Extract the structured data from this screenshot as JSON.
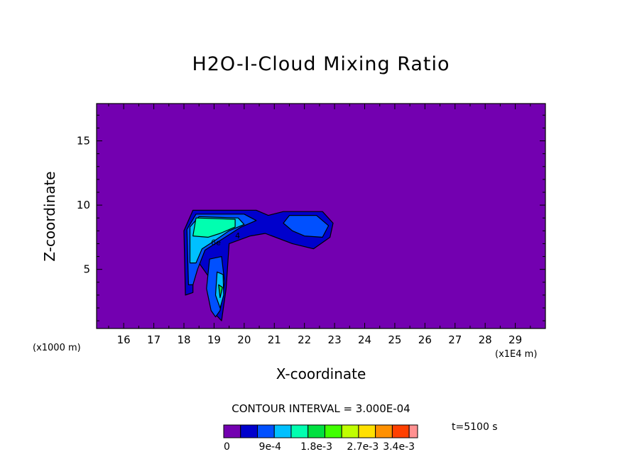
{
  "chart_data": {
    "type": "contour",
    "title": "H2O-I-Cloud Mixing Ratio",
    "xlabel": "X-coordinate",
    "ylabel": "Z-coordinate",
    "x_unit_left": "(x1000 m)",
    "x_unit_right": "(x1E4 m)",
    "xlim": [
      15.1,
      30.0
    ],
    "ylim": [
      0.4,
      17.9
    ],
    "x_ticks": [
      "16",
      "17",
      "18",
      "19",
      "20",
      "21",
      "22",
      "23",
      "24",
      "25",
      "26",
      "27",
      "28",
      "29"
    ],
    "x_tick_values": [
      16,
      17,
      18,
      19,
      20,
      21,
      22,
      23,
      24,
      25,
      26,
      27,
      28,
      29
    ],
    "y_ticks": [
      "5",
      "10",
      "15"
    ],
    "y_tick_values": [
      5,
      10,
      15
    ],
    "contour_interval": "CONTOUR INTERVAL = 3.000E-04",
    "contour_labels": [
      "6e",
      "4"
    ],
    "time": "t=5100 s",
    "colorbar": {
      "colors": [
        "#7300b0",
        "#0000cc",
        "#0050ff",
        "#00c0ff",
        "#00ffb0",
        "#00e040",
        "#40ff00",
        "#c0ff00",
        "#ffe000",
        "#ff9000",
        "#ff4000",
        "#ff9090"
      ],
      "tick_labels": [
        {
          "label": "0",
          "value": 0
        },
        {
          "label": "9e-4",
          "value": 0.0009
        },
        {
          "label": "1.8e-3",
          "value": 0.0018
        },
        {
          "label": "2.7e-3",
          "value": 0.0027
        },
        {
          "label": "3.4e-3",
          "value": 0.0034
        }
      ],
      "max": 0.0036
    },
    "regions": [
      {
        "name": "L-shaped cloud outer (>=3e-4)",
        "color": "#0000cc",
        "points": [
          [
            18.05,
            3.0
          ],
          [
            18.0,
            8.0
          ],
          [
            18.3,
            9.6
          ],
          [
            20.4,
            9.6
          ],
          [
            20.8,
            9.2
          ],
          [
            21.3,
            9.5
          ],
          [
            22.6,
            9.5
          ],
          [
            22.95,
            8.6
          ],
          [
            22.85,
            7.5
          ],
          [
            22.3,
            6.6
          ],
          [
            21.6,
            7.0
          ],
          [
            20.7,
            7.8
          ],
          [
            20.2,
            7.6
          ],
          [
            19.5,
            7.0
          ],
          [
            19.4,
            3.5
          ],
          [
            19.25,
            1.0
          ],
          [
            19.05,
            1.5
          ],
          [
            18.95,
            2.5
          ],
          [
            18.8,
            4.5
          ],
          [
            18.5,
            5.5
          ],
          [
            18.3,
            4.5
          ],
          [
            18.3,
            3.2
          ]
        ]
      },
      {
        "name": "left arm (>=6e-4)",
        "color": "#0050ff",
        "points": [
          [
            18.15,
            3.8
          ],
          [
            18.1,
            8.1
          ],
          [
            18.4,
            9.3
          ],
          [
            20.0,
            9.3
          ],
          [
            20.4,
            8.8
          ],
          [
            19.9,
            8.3
          ],
          [
            19.3,
            7.4
          ],
          [
            18.7,
            6.5
          ],
          [
            18.45,
            5.0
          ],
          [
            18.3,
            3.8
          ]
        ]
      },
      {
        "name": "right lobe (>=6e-4)",
        "color": "#0050ff",
        "points": [
          [
            21.3,
            8.6
          ],
          [
            21.5,
            9.2
          ],
          [
            22.4,
            9.2
          ],
          [
            22.8,
            8.4
          ],
          [
            22.6,
            7.5
          ],
          [
            22.0,
            7.6
          ],
          [
            21.6,
            8.0
          ]
        ]
      },
      {
        "name": "left arm core (>=9e-4)",
        "color": "#00c0ff",
        "points": [
          [
            18.2,
            5.5
          ],
          [
            18.2,
            8.3
          ],
          [
            18.5,
            9.1
          ],
          [
            19.8,
            9.0
          ],
          [
            20.0,
            8.5
          ],
          [
            19.5,
            8.0
          ],
          [
            19.0,
            7.2
          ],
          [
            18.6,
            6.6
          ],
          [
            18.4,
            5.5
          ]
        ]
      },
      {
        "name": "left arm peak (>=1.2e-3)",
        "color": "#00ffb0",
        "points": [
          [
            18.3,
            7.6
          ],
          [
            18.4,
            9.0
          ],
          [
            19.7,
            8.9
          ],
          [
            19.7,
            8.3
          ],
          [
            19.2,
            7.8
          ],
          [
            18.8,
            7.5
          ]
        ]
      },
      {
        "name": "descending column outer (>=6e-4)",
        "color": "#0050ff",
        "points": [
          [
            18.85,
            5.8
          ],
          [
            18.75,
            3.5
          ],
          [
            18.9,
            1.8
          ],
          [
            19.05,
            1.3
          ],
          [
            19.2,
            1.8
          ],
          [
            19.35,
            4.0
          ],
          [
            19.25,
            6.0
          ]
        ]
      },
      {
        "name": "descending column core (>=9e-4)",
        "color": "#00c0ff",
        "points": [
          [
            19.1,
            4.8
          ],
          [
            19.05,
            3.0
          ],
          [
            19.2,
            2.0
          ],
          [
            19.32,
            3.0
          ],
          [
            19.3,
            4.6
          ]
        ]
      },
      {
        "name": "descending column peak (>=1.2e-3)",
        "color": "#00e040",
        "points": [
          [
            19.15,
            3.8
          ],
          [
            19.2,
            2.8
          ],
          [
            19.28,
            3.6
          ]
        ]
      }
    ]
  }
}
